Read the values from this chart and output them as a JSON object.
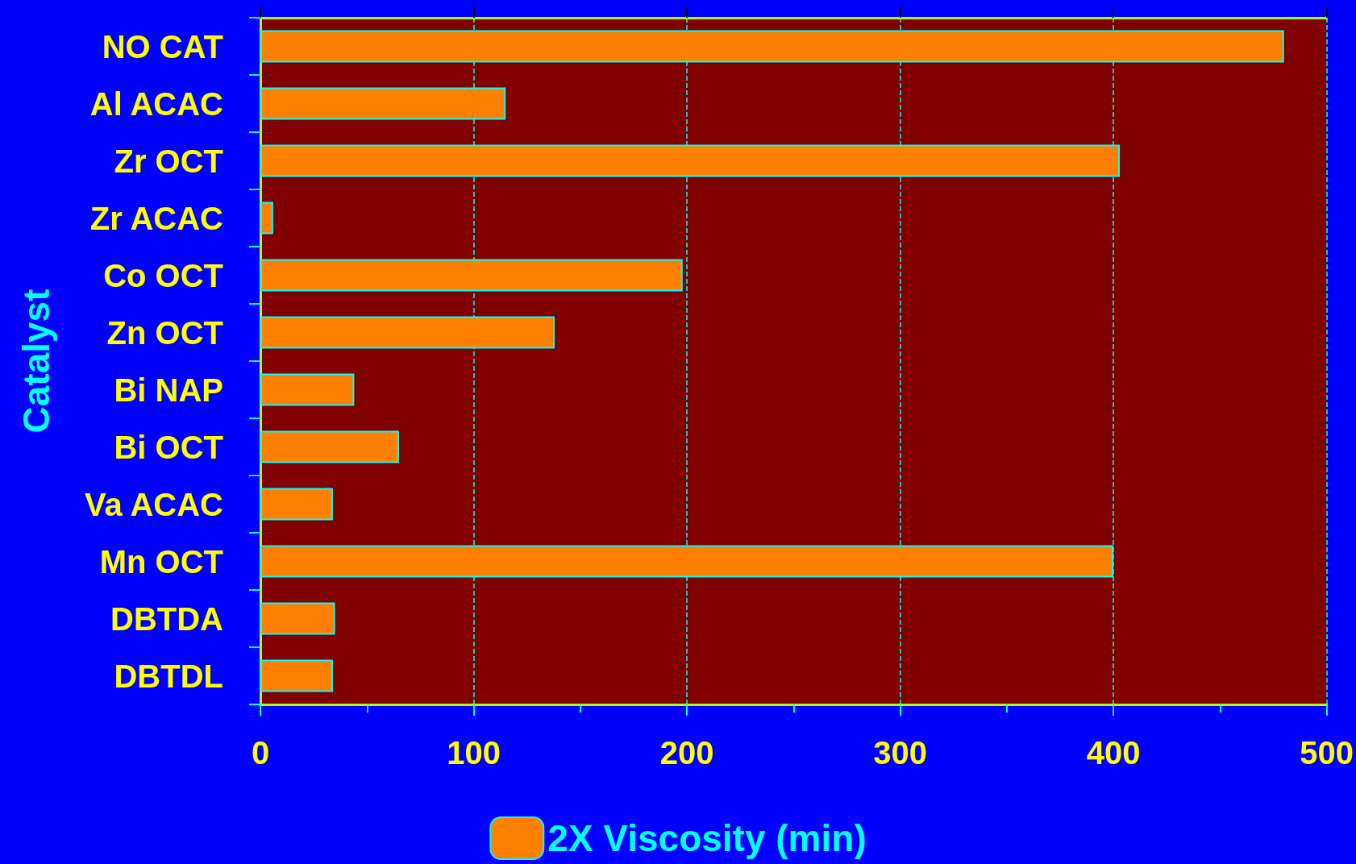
{
  "chart_data": {
    "type": "bar",
    "orientation": "horizontal",
    "ylabel": "Catalyst",
    "categories": [
      "NO CAT",
      "Al ACAC",
      "Zr OCT",
      "Zr ACAC",
      "Co OCT",
      "Zn OCT",
      "Bi NAP",
      "Bi OCT",
      "Va ACAC",
      "Mn OCT",
      "DBTDA",
      "DBTDL"
    ],
    "series": [
      {
        "name": "2X Viscosity (min)",
        "color": "#ff8000",
        "values": [
          480,
          115,
          403,
          6,
          198,
          138,
          44,
          65,
          34,
          400,
          35,
          34
        ]
      }
    ],
    "xlim": [
      0,
      500
    ],
    "xticks": [
      0,
      100,
      200,
      300,
      400,
      500
    ],
    "grid": "x",
    "legend": "bottom"
  }
}
